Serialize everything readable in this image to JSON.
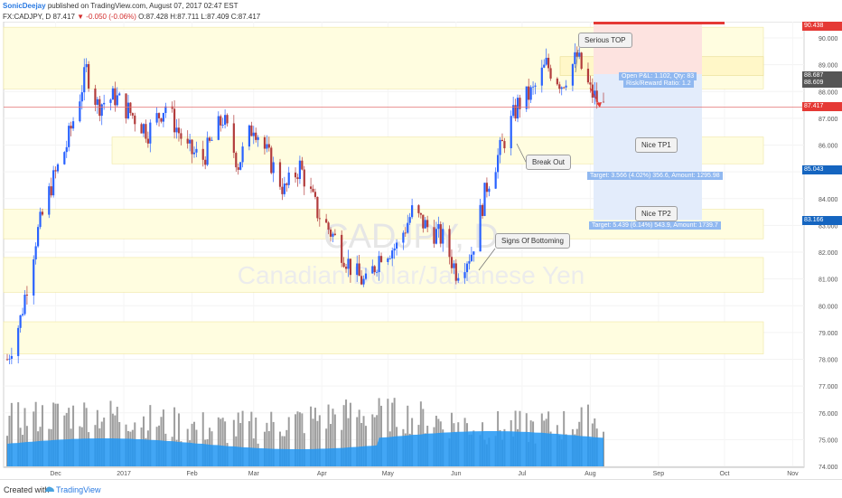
{
  "header": {
    "author": "SonicDeejay",
    "published": "published on TradingView.com, August 07, 2017 02:47 EST",
    "symbol": "FX:CADJPY, D",
    "last": "87.417",
    "change_arrow": "▼",
    "change": "-0.050 (-0.06%)",
    "o_label": "O:",
    "o": "87.428",
    "h_label": "H:",
    "h": "87.711",
    "l_label": "L:",
    "l": "87.409",
    "c_label": "C:",
    "c": "87.417"
  },
  "footer": {
    "created": "Created with",
    "brand": "TradingView"
  },
  "watermark": {
    "ticker": "CADJPY, D",
    "name": "Canadian Dollar/Japanese Yen"
  },
  "annotations": {
    "serious_top": "Serious TOP",
    "break_out": "Break Out",
    "signs_bottoming": "Signs Of Bottoming",
    "nice_tp1": "Nice TP1",
    "nice_tp2": "Nice TP2"
  },
  "position_tool": {
    "open_pnl": "Open P&L: 1.102, Qty: 83",
    "risk_reward": "Risk/Reward Ratio: 1.2",
    "target1": "Target: 3.566 (4.02%) 356.6, Amount: 1295.98",
    "target2": "Target: 5.439 (6.14%) 543.9, Amount: 1739.7"
  },
  "price_labels": [
    {
      "value": "90.438",
      "color": "#e53935"
    },
    {
      "value": "88.687",
      "color": "#555555"
    },
    {
      "value": "88.609",
      "color": "#555555"
    },
    {
      "value": "87.417",
      "color": "#e53935"
    },
    {
      "value": "85.043",
      "color": "#1565c0"
    },
    {
      "value": "83.166",
      "color": "#1565c0"
    }
  ],
  "colors": {
    "up": "#2962ff",
    "down": "#b23c3c",
    "zone": "#fffde0",
    "volume_area": "#2196f3",
    "price_line": "#e57373"
  },
  "chart_data": {
    "type": "candlestick",
    "symbol": "FX:CADJPY",
    "interval": "D",
    "ylim": [
      74.0,
      90.5
    ],
    "y_ticks": [
      "90.000",
      "89.000",
      "88.000",
      "87.000",
      "86.000",
      "85.000",
      "84.000",
      "83.000",
      "82.000",
      "81.000",
      "80.000",
      "79.000",
      "78.000",
      "77.000",
      "76.000",
      "75.000",
      "74.000"
    ],
    "x_ticks": [
      "Dec",
      "2017",
      "Feb",
      "Mar",
      "Apr",
      "May",
      "Jun",
      "Jul",
      "Aug",
      "Sep",
      "Oct",
      "Nov"
    ],
    "last_close": 87.417,
    "price_path": [
      {
        "date": "2016-11-09",
        "price": 78.0
      },
      {
        "date": "2016-11-15",
        "price": 79.5
      },
      {
        "date": "2016-11-22",
        "price": 82.5
      },
      {
        "date": "2016-11-29",
        "price": 84.5
      },
      {
        "date": "2016-12-06",
        "price": 86.0
      },
      {
        "date": "2016-12-15",
        "price": 88.8
      },
      {
        "date": "2016-12-20",
        "price": 87.5
      },
      {
        "date": "2016-12-28",
        "price": 87.8
      },
      {
        "date": "2017-01-04",
        "price": 87.2
      },
      {
        "date": "2017-01-12",
        "price": 86.5
      },
      {
        "date": "2017-01-20",
        "price": 87.5
      },
      {
        "date": "2017-01-30",
        "price": 85.8
      },
      {
        "date": "2017-02-06",
        "price": 85.5
      },
      {
        "date": "2017-02-15",
        "price": 87.0
      },
      {
        "date": "2017-02-22",
        "price": 85.3
      },
      {
        "date": "2017-03-01",
        "price": 86.8
      },
      {
        "date": "2017-03-08",
        "price": 85.5
      },
      {
        "date": "2017-03-15",
        "price": 84.3
      },
      {
        "date": "2017-03-22",
        "price": 85.2
      },
      {
        "date": "2017-03-30",
        "price": 83.5
      },
      {
        "date": "2017-04-07",
        "price": 82.5
      },
      {
        "date": "2017-04-15",
        "price": 81.3
      },
      {
        "date": "2017-04-21",
        "price": 80.8
      },
      {
        "date": "2017-04-28",
        "price": 82.0
      },
      {
        "date": "2017-05-05",
        "price": 82.2
      },
      {
        "date": "2017-05-12",
        "price": 83.5
      },
      {
        "date": "2017-05-18",
        "price": 83.0
      },
      {
        "date": "2017-05-26",
        "price": 82.5
      },
      {
        "date": "2017-06-01",
        "price": 81.3
      },
      {
        "date": "2017-06-08",
        "price": 82.0
      },
      {
        "date": "2017-06-15",
        "price": 84.5
      },
      {
        "date": "2017-06-22",
        "price": 86.0
      },
      {
        "date": "2017-06-29",
        "price": 87.5
      },
      {
        "date": "2017-07-06",
        "price": 88.0
      },
      {
        "date": "2017-07-12",
        "price": 89.0
      },
      {
        "date": "2017-07-19",
        "price": 88.3
      },
      {
        "date": "2017-07-26",
        "price": 89.3
      },
      {
        "date": "2017-08-01",
        "price": 88.0
      },
      {
        "date": "2017-08-07",
        "price": 87.417
      }
    ],
    "zones": [
      {
        "label": "upper",
        "from": 88.1,
        "to": 90.5
      },
      {
        "label": "tp1",
        "from": 85.3,
        "to": 86.3
      },
      {
        "label": "tp2",
        "from": 82.5,
        "to": 83.6
      },
      {
        "label": "mid",
        "from": 80.5,
        "to": 81.8
      },
      {
        "label": "low",
        "from": 78.2,
        "to": 79.4
      }
    ]
  }
}
